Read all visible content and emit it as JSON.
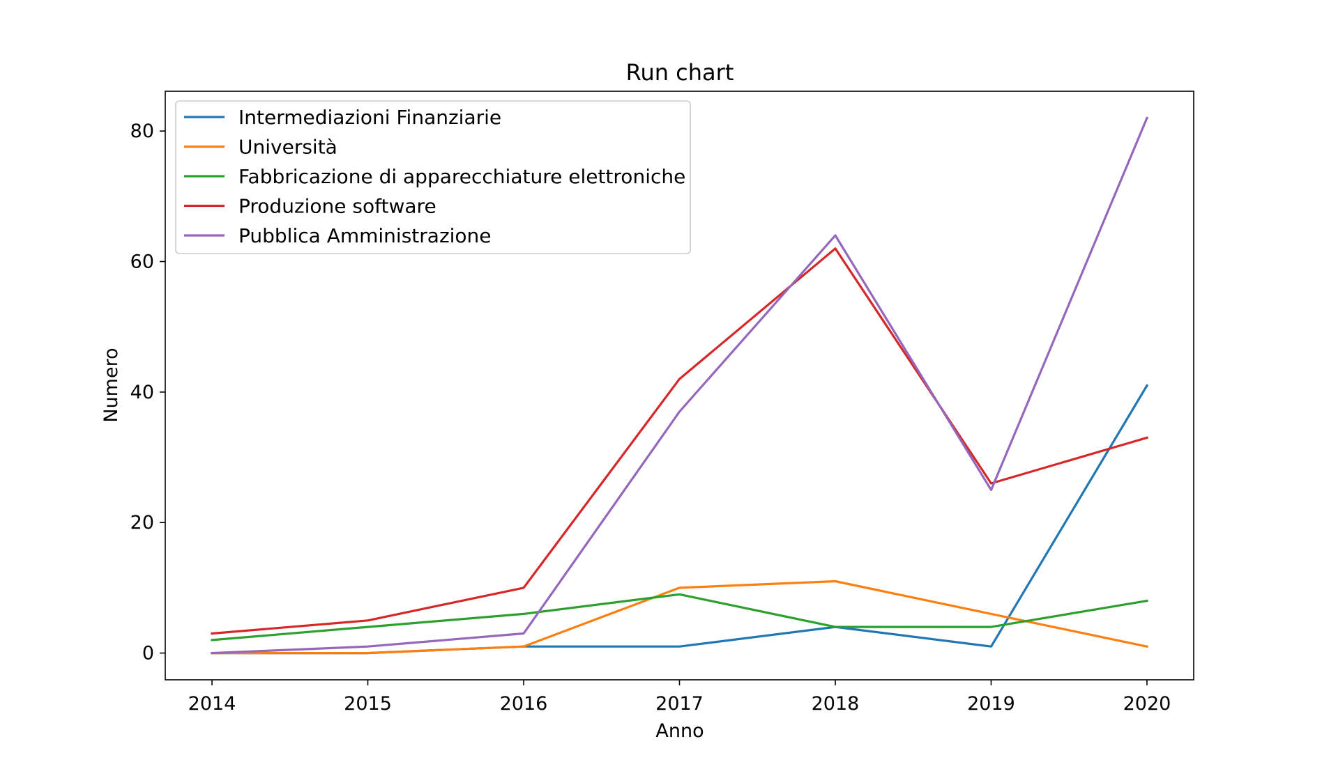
{
  "chart_data": {
    "type": "line",
    "title": "Run chart",
    "xlabel": "Anno",
    "ylabel": "Numero",
    "x": [
      2014,
      2015,
      2016,
      2017,
      2018,
      2019,
      2020
    ],
    "xlim": [
      2013.7,
      2020.3
    ],
    "ylim": [
      -4.1,
      86.1
    ],
    "yticks": [
      0,
      20,
      40,
      60,
      80
    ],
    "grid": false,
    "legend_position": "top-left",
    "series": [
      {
        "name": "Intermediazioni Finanziarie",
        "color": "#1f77b4",
        "values": [
          0,
          0,
          1,
          1,
          4,
          1,
          41
        ]
      },
      {
        "name": "Università",
        "color": "#ff7f0e",
        "values": [
          0,
          0,
          1,
          10,
          11,
          6,
          1
        ]
      },
      {
        "name": "Fabbricazione di apparecchiature elettroniche",
        "color": "#2ca02c",
        "values": [
          2,
          4,
          6,
          9,
          4,
          4,
          8
        ]
      },
      {
        "name": "Produzione software",
        "color": "#d62728",
        "values": [
          3,
          5,
          10,
          42,
          62,
          26,
          33
        ]
      },
      {
        "name": "Pubblica Amministrazione",
        "color": "#9467bd",
        "values": [
          0,
          1,
          3,
          37,
          64,
          25,
          82
        ]
      }
    ]
  }
}
